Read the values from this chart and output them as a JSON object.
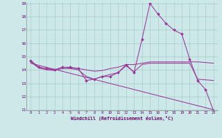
{
  "background_color": "#cce8e8",
  "grid_color": "#aacccc",
  "line_color": "#993399",
  "xlabel": "Windchill (Refroidissement éolien,°C)",
  "ylim": [
    11,
    19
  ],
  "xlim": [
    -0.5,
    23.5
  ],
  "yticks": [
    11,
    12,
    13,
    14,
    15,
    16,
    17,
    18,
    19
  ],
  "xticks": [
    0,
    1,
    2,
    3,
    4,
    5,
    6,
    7,
    8,
    9,
    10,
    11,
    12,
    13,
    14,
    15,
    16,
    17,
    18,
    19,
    20,
    21,
    22,
    23
  ],
  "series": [
    {
      "x": [
        0,
        1,
        2,
        3,
        4,
        5,
        6,
        7,
        8,
        9,
        10,
        11,
        12,
        13,
        14,
        15,
        16,
        17,
        18,
        19,
        20,
        21,
        22,
        23
      ],
      "y": [
        14.7,
        14.2,
        14.1,
        14.0,
        14.2,
        14.2,
        14.1,
        13.2,
        13.3,
        13.5,
        13.5,
        13.8,
        14.4,
        13.8,
        16.3,
        19.0,
        18.2,
        17.5,
        17.0,
        16.7,
        14.8,
        13.2,
        12.5,
        10.9
      ],
      "marker": "D",
      "markersize": 2.0
    },
    {
      "x": [
        0,
        1,
        2,
        3,
        4,
        5,
        6,
        7,
        8,
        9,
        10,
        11,
        12,
        13,
        14,
        15,
        16,
        17,
        18,
        19,
        20,
        21,
        22,
        23
      ],
      "y": [
        14.7,
        14.2,
        14.1,
        14.0,
        14.2,
        14.15,
        14.1,
        14.0,
        13.9,
        13.95,
        14.1,
        14.2,
        14.4,
        14.4,
        14.5,
        14.6,
        14.6,
        14.6,
        14.6,
        14.6,
        14.6,
        14.6,
        14.55,
        14.5
      ],
      "marker": null,
      "markersize": 0
    },
    {
      "x": [
        0,
        1,
        2,
        3,
        4,
        5,
        6,
        7,
        8,
        9,
        10,
        11,
        12,
        13,
        14,
        15,
        16,
        17,
        18,
        19,
        20,
        21,
        22,
        23
      ],
      "y": [
        14.6,
        14.15,
        14.0,
        13.95,
        14.1,
        14.1,
        14.0,
        13.5,
        13.3,
        13.5,
        13.65,
        13.8,
        14.3,
        13.85,
        14.4,
        14.5,
        14.5,
        14.5,
        14.5,
        14.5,
        14.5,
        13.3,
        13.25,
        13.2
      ],
      "marker": null,
      "markersize": 0
    },
    {
      "x": [
        0,
        23
      ],
      "y": [
        14.5,
        11.0
      ],
      "marker": null,
      "markersize": 0
    }
  ]
}
